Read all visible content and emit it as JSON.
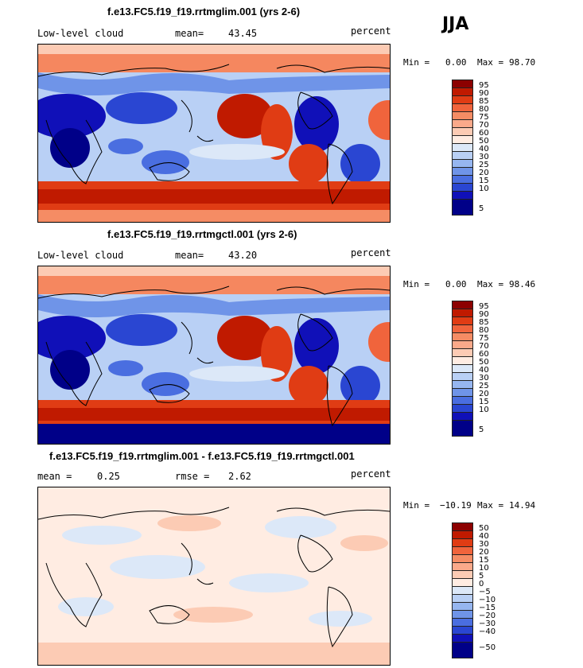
{
  "season": "JJA",
  "units": "percent",
  "panels": [
    {
      "title": "f.e13.FC5.f19_f19.rrtmglim.001 (yrs 2-6)",
      "variable": "Low-level cloud",
      "stat_label": "mean=",
      "stat_value": "43.45",
      "units": "percent",
      "min_label": "Min =",
      "min_value": "0.00",
      "max_label": "Max =",
      "max_value": "98.70",
      "colorbar": {
        "labels": [
          "95",
          "90",
          "85",
          "80",
          "75",
          "70",
          "60",
          "50",
          "40",
          "30",
          "25",
          "20",
          "15",
          "10",
          "5"
        ],
        "colors": [
          "#8c0000",
          "#c01a00",
          "#e03c14",
          "#f0643c",
          "#f58c64",
          "#faa98a",
          "#fccbb4",
          "#ffece2",
          "#dce8f8",
          "#b9d0f5",
          "#96b6f0",
          "#6f94e8",
          "#4a6ee0",
          "#2a46d2",
          "#1010b8",
          "#000088"
        ]
      },
      "chart_data": {
        "type": "heatmap",
        "field": "Low-level cloud fraction (percent), JJA mean, yrs 2-6",
        "mean": 43.45,
        "min": 0.0,
        "max": 98.7,
        "levels": [
          5,
          10,
          15,
          20,
          25,
          30,
          40,
          50,
          60,
          70,
          75,
          80,
          85,
          90,
          95
        ]
      }
    },
    {
      "title": "f.e13.FC5.f19_f19.rrtmgctl.001 (yrs 2-6)",
      "variable": "Low-level cloud",
      "stat_label": "mean=",
      "stat_value": "43.20",
      "units": "percent",
      "min_label": "Min =",
      "min_value": "0.00",
      "max_label": "Max =",
      "max_value": "98.46",
      "colorbar": {
        "labels": [
          "95",
          "90",
          "85",
          "80",
          "75",
          "70",
          "60",
          "50",
          "40",
          "30",
          "25",
          "20",
          "15",
          "10",
          "5"
        ],
        "colors": [
          "#8c0000",
          "#c01a00",
          "#e03c14",
          "#f0643c",
          "#f58c64",
          "#faa98a",
          "#fccbb4",
          "#ffece2",
          "#dce8f8",
          "#b9d0f5",
          "#96b6f0",
          "#6f94e8",
          "#4a6ee0",
          "#2a46d2",
          "#1010b8",
          "#000088"
        ]
      },
      "chart_data": {
        "type": "heatmap",
        "field": "Low-level cloud fraction (percent), JJA mean, yrs 2-6",
        "mean": 43.2,
        "min": 0.0,
        "max": 98.46,
        "levels": [
          5,
          10,
          15,
          20,
          25,
          30,
          40,
          50,
          60,
          70,
          75,
          80,
          85,
          90,
          95
        ]
      }
    },
    {
      "title": "f.e13.FC5.f19_f19.rrtmglim.001 - f.e13.FC5.f19_f19.rrtmgctl.001",
      "stat_label": "mean =",
      "stat_value": "0.25",
      "stat2_label": "rmse =",
      "stat2_value": "2.62",
      "units": "percent",
      "min_label": "Min =",
      "min_value": "−10.19",
      "max_label": "Max =",
      "max_value": "14.94",
      "colorbar": {
        "labels": [
          "50",
          "40",
          "30",
          "20",
          "15",
          "10",
          "5",
          "0",
          "−5",
          "−10",
          "−15",
          "−20",
          "−30",
          "−40",
          "−50"
        ],
        "colors": [
          "#8c0000",
          "#c01a00",
          "#e03c14",
          "#f0643c",
          "#f58c64",
          "#faa98a",
          "#fccbb4",
          "#ffece2",
          "#dce8f8",
          "#b9d0f5",
          "#96b6f0",
          "#6f94e8",
          "#4a6ee0",
          "#2a46d2",
          "#1010b8",
          "#000088"
        ]
      },
      "chart_data": {
        "type": "heatmap",
        "field": "Low-level cloud difference (percent), JJA",
        "mean": 0.25,
        "rmse": 2.62,
        "min": -10.19,
        "max": 14.94,
        "levels": [
          -50,
          -40,
          -30,
          -20,
          -15,
          -10,
          -5,
          0,
          5,
          10,
          15,
          20,
          30,
          40,
          50
        ]
      }
    }
  ]
}
